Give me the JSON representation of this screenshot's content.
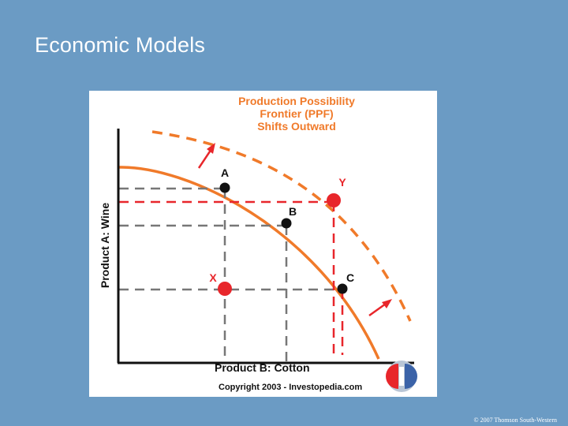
{
  "slide": {
    "title": "Economic Models",
    "footer": "© 2007 Thomson South-Western"
  },
  "diagram": {
    "header_lines": [
      "Production Possibility",
      "Frontier (PPF)",
      "Shifts Outward"
    ],
    "y_axis_label": "Product A:  Wine",
    "x_axis_label": "Product B:  Cotton",
    "copyright": "Copyright 2003 - Investopedia.com",
    "points": [
      {
        "label": "A",
        "color": "#111111"
      },
      {
        "label": "B",
        "color": "#111111"
      },
      {
        "label": "C",
        "color": "#111111"
      },
      {
        "label": "X",
        "color": "#e8262b"
      },
      {
        "label": "Y",
        "color": "#e8262b"
      }
    ],
    "colors": {
      "title_text": "#f07a2a",
      "curve": "#f07a2a",
      "highlight": "#e8262b",
      "axis": "#111111",
      "guide": "#777777"
    }
  }
}
